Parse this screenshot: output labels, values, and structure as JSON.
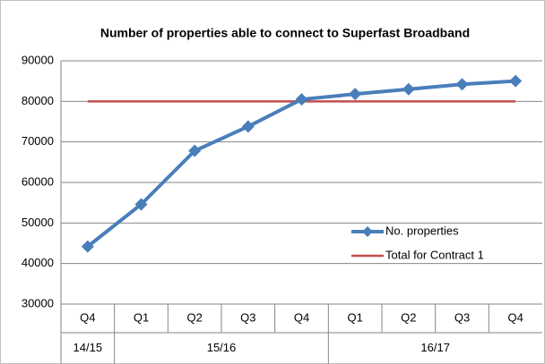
{
  "chart_data": {
    "type": "line",
    "title": "Number  of properties able to connect to Superfast Broadband",
    "categories": [
      "Q4",
      "Q1",
      "Q2",
      "Q3",
      "Q4",
      "Q1",
      "Q2",
      "Q3",
      "Q4"
    ],
    "category_groups": [
      "14/15",
      "15/16",
      "15/16",
      "15/16",
      "15/16",
      "16/17",
      "16/17",
      "16/17",
      "16/17"
    ],
    "series": [
      {
        "name": "No. properties",
        "color": "#4a7ebb",
        "marker": "diamond",
        "values": [
          44200,
          54600,
          67800,
          73800,
          80500,
          81800,
          83000,
          84200,
          85000
        ]
      },
      {
        "name": "Total for Contract 1",
        "color": "#c0504d",
        "values": [
          80000,
          80000,
          80000,
          80000,
          80000,
          80000,
          80000,
          80000,
          80000
        ]
      }
    ],
    "ylim": [
      30000,
      90000
    ],
    "yticks": [
      30000,
      40000,
      50000,
      60000,
      70000,
      80000,
      90000
    ],
    "grid": true
  }
}
